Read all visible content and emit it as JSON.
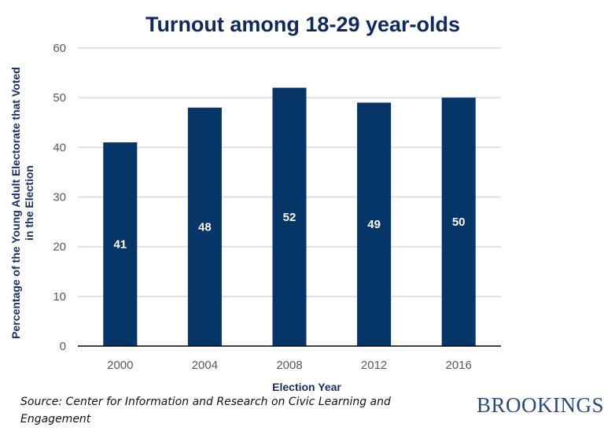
{
  "chart_data": {
    "type": "bar",
    "title": "Turnout among 18-29 year-olds",
    "xlabel": "Election Year",
    "ylabel_lines": [
      "Percentage of the Young Adult Electorate that Voted",
      "in the Election"
    ],
    "categories": [
      "2000",
      "2004",
      "2008",
      "2012",
      "2016"
    ],
    "values": [
      41,
      48,
      52,
      49,
      50
    ],
    "data_labels": [
      "41",
      "48",
      "52",
      "49",
      "50"
    ],
    "ylim": [
      0,
      60
    ],
    "yticks": [
      0,
      10,
      20,
      30,
      40,
      50,
      60
    ],
    "grid": true,
    "legend": "none",
    "bar_color": "#063567",
    "grid_color": "#d9d9d9"
  },
  "footer": {
    "source": "Source: Center for Information and Research on Civic Learning and Engagement",
    "brand": "BROOKINGS"
  }
}
